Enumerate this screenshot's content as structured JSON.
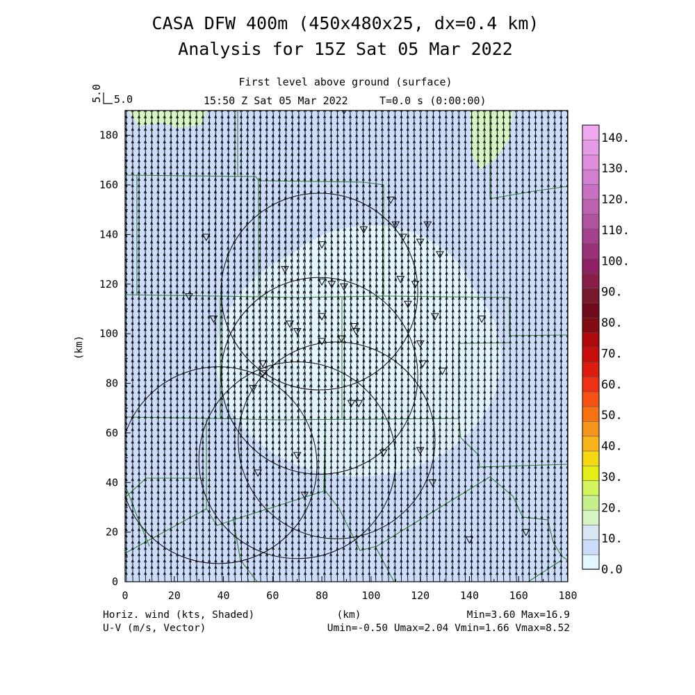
{
  "header": {
    "title_line1": "CASA DFW 400m (450x480x25, dx=0.4 km)",
    "title_line2": "Analysis for 15Z Sat 05 Mar 2022",
    "subtitle_level": "First level above ground (surface)",
    "subtitle_time": "15:50 Z Sat 05 Mar 2022",
    "subtitle_t": "T=0.0 s (0:00:00)",
    "ref_vector_value": "5.0",
    "ref_vector_label": "5.0"
  },
  "axes": {
    "xlabel": "(km)",
    "ylabel": "(km)",
    "xlim": [
      0,
      180
    ],
    "ylim": [
      0,
      190
    ],
    "xticks": [
      "0",
      "20",
      "40",
      "60",
      "80",
      "100",
      "120",
      "140",
      "160",
      "180"
    ],
    "yticks": [
      "0",
      "20",
      "40",
      "60",
      "80",
      "100",
      "120",
      "140",
      "160",
      "180"
    ]
  },
  "footer": {
    "left_line1": "Horiz. wind (kts, Shaded)",
    "left_line2": "U-V (m/s, Vector)",
    "right_line1": "Min=3.60 Max=16.9",
    "right_line2": "Umin=-0.50 Umax=2.04 Vmin=1.66 Vmax=8.52"
  },
  "colorbar": {
    "labels": [
      "0.0",
      "10.",
      "20.",
      "30.",
      "40.",
      "50.",
      "60.",
      "70.",
      "80.",
      "90.",
      "100.",
      "110.",
      "120.",
      "130.",
      "140."
    ],
    "colors": [
      "#e4f6ff",
      "#ccdcfb",
      "#d8e6f4",
      "#d6f5c2",
      "#c6f08e",
      "#d4f55e",
      "#e6ee18",
      "#f5d714",
      "#f8b41a",
      "#f7941c",
      "#f67314",
      "#f55214",
      "#ef3014",
      "#dd1c10",
      "#c80e0c",
      "#b00a0a",
      "#820c12",
      "#6e0a1a",
      "#781a2c",
      "#8a1e4a",
      "#901f63",
      "#993078",
      "#a4418c",
      "#b053a0",
      "#bc62b1",
      "#c871c2",
      "#d37fcf",
      "#dd8ddc",
      "#e69be6",
      "#f0a9f0"
    ]
  },
  "map": {
    "shading_colors": {
      "low": "#e4f6ff",
      "mid": "#ccdcfb",
      "high": "#d6f5c2"
    },
    "boundary_color": "#2e7d32",
    "range_ring_color": "#000000",
    "wind_unit_ms_per_ref": 5.0,
    "radars": [
      {
        "x": 79,
        "y": 117,
        "r_km": 40
      },
      {
        "x": 86,
        "y": 57,
        "r_km": 40
      },
      {
        "x": 79,
        "y": 83,
        "r_km": 40
      },
      {
        "x": 38,
        "y": 47,
        "r_km": 40
      },
      {
        "x": 70,
        "y": 49,
        "r_km": 40
      }
    ],
    "stations": [
      [
        89,
        190
      ],
      [
        33,
        139
      ],
      [
        26,
        115
      ],
      [
        36,
        106
      ],
      [
        65,
        126
      ],
      [
        80,
        136
      ],
      [
        80,
        121
      ],
      [
        84,
        120
      ],
      [
        89,
        119
      ],
      [
        97,
        142
      ],
      [
        110,
        144
      ],
      [
        108,
        154
      ],
      [
        113,
        139
      ],
      [
        123,
        144
      ],
      [
        120,
        137
      ],
      [
        128,
        132
      ],
      [
        112,
        122
      ],
      [
        118,
        120
      ],
      [
        115,
        112
      ],
      [
        126,
        107
      ],
      [
        67,
        104
      ],
      [
        70,
        101
      ],
      [
        80,
        107
      ],
      [
        80,
        97
      ],
      [
        88,
        98
      ],
      [
        94,
        101
      ],
      [
        93,
        103
      ],
      [
        120,
        96
      ],
      [
        121,
        88
      ],
      [
        129,
        85
      ],
      [
        145,
        106
      ],
      [
        56,
        88
      ],
      [
        56,
        84
      ],
      [
        52,
        78
      ],
      [
        95,
        72
      ],
      [
        92,
        72
      ],
      [
        70,
        51
      ],
      [
        105,
        52
      ],
      [
        120,
        53
      ],
      [
        54,
        44
      ],
      [
        73,
        35
      ],
      [
        125,
        40
      ],
      [
        140,
        17
      ],
      [
        163,
        20
      ]
    ]
  }
}
